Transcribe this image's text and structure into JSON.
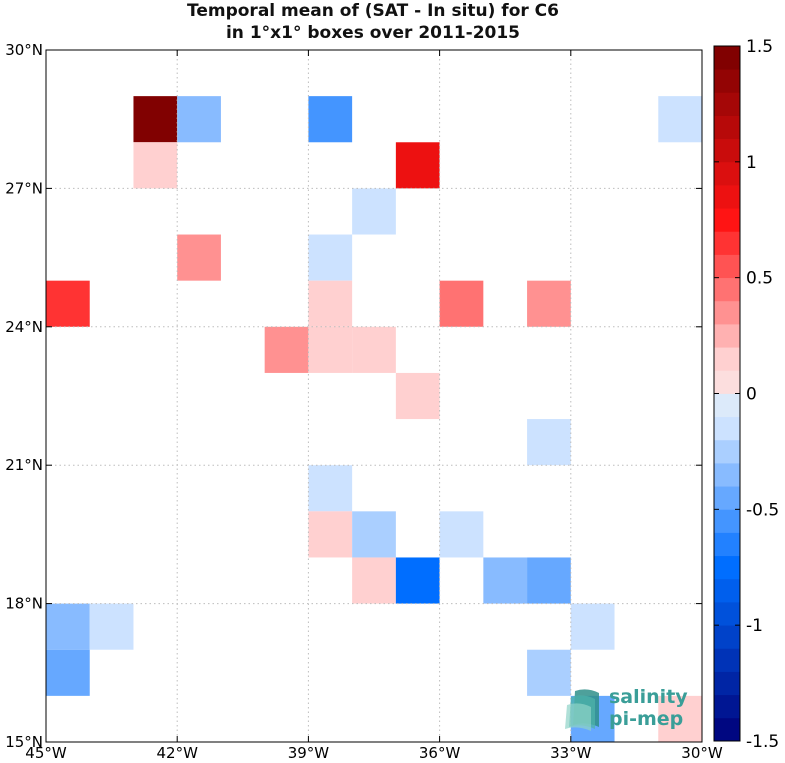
{
  "title_lines": [
    "Temporal mean of (SAT - In situ) for C6",
    "in 1°x1° boxes over 2011-2015"
  ],
  "logo_text": [
    "salinity",
    "pi-mep"
  ],
  "chart_data": {
    "type": "heatmap",
    "title": "Temporal mean of (SAT - In situ) for C6 in 1°x1° boxes over 2011-2015",
    "xlim": [
      -45,
      -30
    ],
    "ylim": [
      15,
      30
    ],
    "x_ticks": [
      -45,
      -42,
      -39,
      -36,
      -33,
      -30
    ],
    "x_tick_labels": [
      "45°W",
      "42°W",
      "39°W",
      "36°W",
      "33°W",
      "30°W"
    ],
    "y_ticks": [
      15,
      18,
      21,
      24,
      27,
      30
    ],
    "y_tick_labels": [
      "15°N",
      "18°N",
      "21°N",
      "24°N",
      "27°N",
      "30°N"
    ],
    "grid": true,
    "colorbar": {
      "range": [
        -1.5,
        1.5
      ],
      "ticks": [
        1.5,
        1,
        0.5,
        0,
        -0.5,
        -1,
        -1.5
      ],
      "tick_labels": [
        "1.5",
        "1",
        "0.5",
        "0",
        "-0.5",
        "-1",
        "-1.5"
      ],
      "colormap": "blue-white-red, 30 levels",
      "position": "right"
    },
    "cells": [
      {
        "lon": -42.5,
        "lat": 28.5,
        "value": 1.45
      },
      {
        "lon": -41.5,
        "lat": 28.5,
        "value": -0.35
      },
      {
        "lon": -38.5,
        "lat": 28.5,
        "value": -0.55
      },
      {
        "lon": -30.5,
        "lat": 28.5,
        "value": -0.15
      },
      {
        "lon": -42.5,
        "lat": 27.5,
        "value": 0.15
      },
      {
        "lon": -36.5,
        "lat": 27.5,
        "value": 0.85
      },
      {
        "lon": -37.5,
        "lat": 26.5,
        "value": -0.15
      },
      {
        "lon": -41.5,
        "lat": 25.5,
        "value": 0.35
      },
      {
        "lon": -38.5,
        "lat": 25.5,
        "value": -0.15
      },
      {
        "lon": -44.5,
        "lat": 24.5,
        "value": 0.6
      },
      {
        "lon": -38.5,
        "lat": 24.5,
        "value": 0.15
      },
      {
        "lon": -35.5,
        "lat": 24.5,
        "value": 0.45
      },
      {
        "lon": -33.5,
        "lat": 24.5,
        "value": 0.3
      },
      {
        "lon": -39.5,
        "lat": 23.5,
        "value": 0.35
      },
      {
        "lon": -38.5,
        "lat": 23.5,
        "value": 0.15
      },
      {
        "lon": -37.5,
        "lat": 23.5,
        "value": 0.15
      },
      {
        "lon": -36.5,
        "lat": 22.5,
        "value": 0.15
      },
      {
        "lon": -33.5,
        "lat": 21.5,
        "value": -0.15
      },
      {
        "lon": -38.5,
        "lat": 20.5,
        "value": -0.15
      },
      {
        "lon": -38.5,
        "lat": 19.5,
        "value": 0.15
      },
      {
        "lon": -37.5,
        "lat": 19.5,
        "value": -0.25
      },
      {
        "lon": -35.5,
        "lat": 19.5,
        "value": -0.15
      },
      {
        "lon": -37.5,
        "lat": 18.5,
        "value": 0.15
      },
      {
        "lon": -36.5,
        "lat": 18.5,
        "value": -0.75
      },
      {
        "lon": -34.5,
        "lat": 18.5,
        "value": -0.35
      },
      {
        "lon": -33.5,
        "lat": 18.5,
        "value": -0.45
      },
      {
        "lon": -44.5,
        "lat": 17.5,
        "value": -0.35
      },
      {
        "lon": -43.5,
        "lat": 17.5,
        "value": -0.15
      },
      {
        "lon": -32.5,
        "lat": 17.5,
        "value": -0.15
      },
      {
        "lon": -44.5,
        "lat": 16.5,
        "value": -0.45
      },
      {
        "lon": -33.5,
        "lat": 16.5,
        "value": -0.25
      },
      {
        "lon": -32.5,
        "lat": 15.5,
        "value": -0.45
      },
      {
        "lon": -30.5,
        "lat": 15.5,
        "value": 0.15
      }
    ]
  }
}
